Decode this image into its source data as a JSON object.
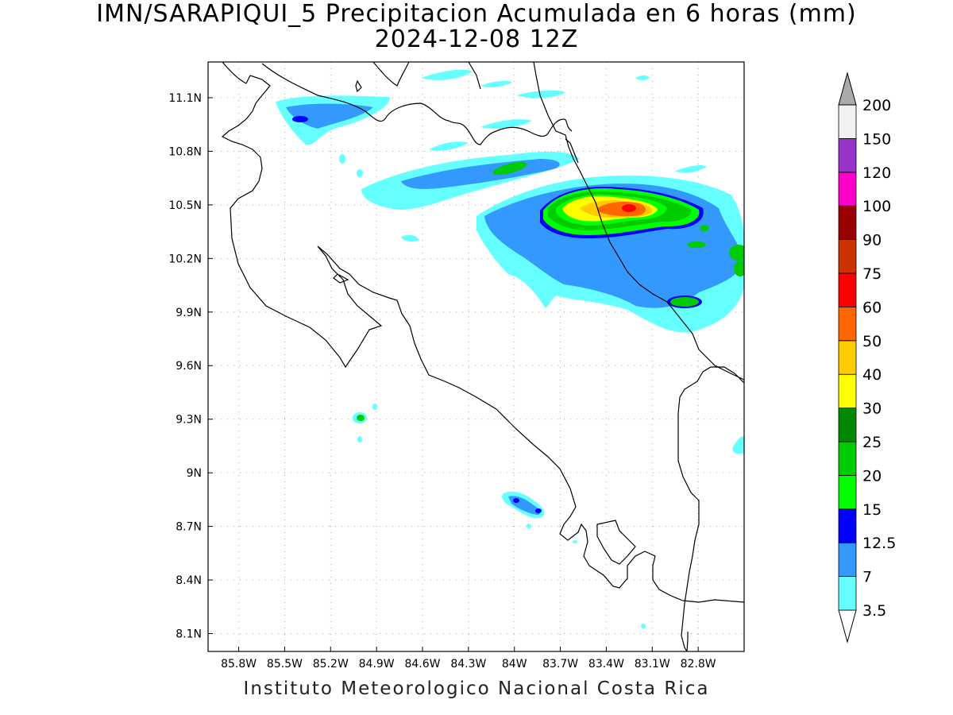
{
  "header": {
    "title": "IMN/SARAPIQUI_5 Precipitacion Acumulada en 6 horas (mm)",
    "subtitle": "2024-12-08 12Z"
  },
  "footer": {
    "credit": "Instituto Meteorologico Nacional Costa Rica"
  },
  "map": {
    "lon_range": [
      -86.0,
      -82.5
    ],
    "lat_range": [
      8.0,
      11.3
    ],
    "x_ticks": [
      "85.8W",
      "85.5W",
      "85.2W",
      "84.9W",
      "84.6W",
      "84.3W",
      "84W",
      "83.7W",
      "83.4W",
      "83.1W",
      "82.8W"
    ],
    "x_tick_values": [
      -85.8,
      -85.5,
      -85.2,
      -84.9,
      -84.6,
      -84.3,
      -84.0,
      -83.7,
      -83.4,
      -83.1,
      -82.8
    ],
    "y_ticks": [
      "11.1N",
      "10.8N",
      "10.5N",
      "10.2N",
      "9.9N",
      "9.6N",
      "9.3N",
      "9N",
      "8.7N",
      "8.4N",
      "8.1N"
    ],
    "y_tick_values": [
      11.1,
      10.8,
      10.5,
      10.2,
      9.9,
      9.6,
      9.3,
      9.0,
      8.7,
      8.4,
      8.1
    ],
    "grid": true
  },
  "colorbar": {
    "unit": "mm",
    "labels": [
      "3.5",
      "7",
      "12.5",
      "15",
      "20",
      "25",
      "30",
      "40",
      "50",
      "60",
      "75",
      "90",
      "100",
      "120",
      "150",
      "200"
    ],
    "colors": [
      "#66ffff",
      "#3399ff",
      "#0000ff",
      "#00ff00",
      "#00cc00",
      "#008800",
      "#ffff00",
      "#ffcc00",
      "#ff6600",
      "#ff0000",
      "#cc3300",
      "#990000",
      "#ff00cc",
      "#9933cc",
      "#f2f2f2",
      "#aaaaaa"
    ]
  }
}
